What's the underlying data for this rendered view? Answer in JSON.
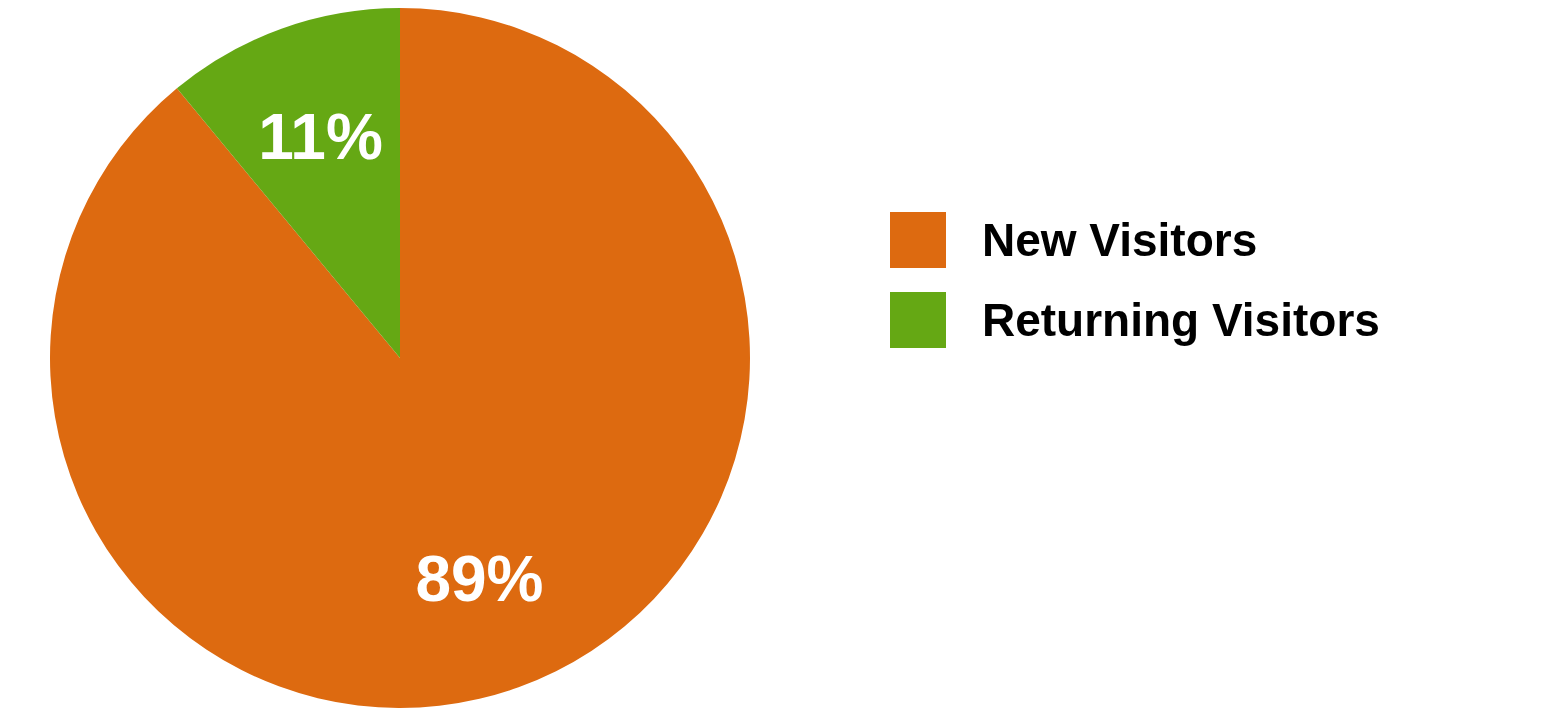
{
  "chart_data": {
    "type": "pie",
    "categories": [
      "New Visitors",
      "Returning Visitors"
    ],
    "values": [
      89,
      11
    ],
    "colors": [
      "#dd6a10",
      "#65a814"
    ],
    "value_labels": [
      "89%",
      "11%"
    ],
    "legend": "right"
  }
}
